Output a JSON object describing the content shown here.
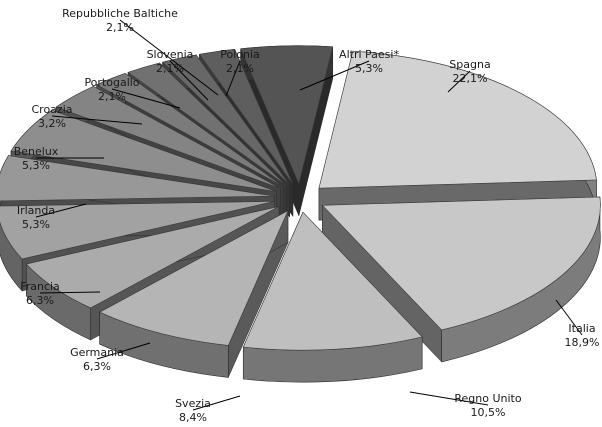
{
  "chart_data": {
    "type": "pie",
    "title": "",
    "style": "3d-exploded",
    "colors": {
      "light": "#d2d2d2",
      "dark": "#545454",
      "leader": "#000000"
    },
    "slices": [
      {
        "label": "Spagna",
        "value_text": "22,1%",
        "value": 22.1
      },
      {
        "label": "Italia",
        "value_text": "18,9%",
        "value": 18.9
      },
      {
        "label": "Regno Unito",
        "value_text": "10,5%",
        "value": 10.5
      },
      {
        "label": "Svezia",
        "value_text": "8,4%",
        "value": 8.4
      },
      {
        "label": "Germania",
        "value_text": "6,3%",
        "value": 6.3
      },
      {
        "label": "Francia",
        "value_text": "6,3%",
        "value": 6.3
      },
      {
        "label": "Irlanda",
        "value_text": "5,3%",
        "value": 5.3
      },
      {
        "label": "Benelux",
        "value_text": "5,3%",
        "value": 5.3
      },
      {
        "label": "Croazia",
        "value_text": "3,2%",
        "value": 3.2
      },
      {
        "label": "Portogallo",
        "value_text": "2,1%",
        "value": 2.1
      },
      {
        "label": "Slovenia",
        "value_text": "2,1%",
        "value": 2.1
      },
      {
        "label": "Polonia",
        "value_text": "2,1%",
        "value": 2.1
      },
      {
        "label": "Repubbliche Baltiche",
        "value_text": "2,1%",
        "value": 2.1
      },
      {
        "label": "Altri Paesi*",
        "value_text": "5,3%",
        "value": 5.3
      }
    ]
  }
}
